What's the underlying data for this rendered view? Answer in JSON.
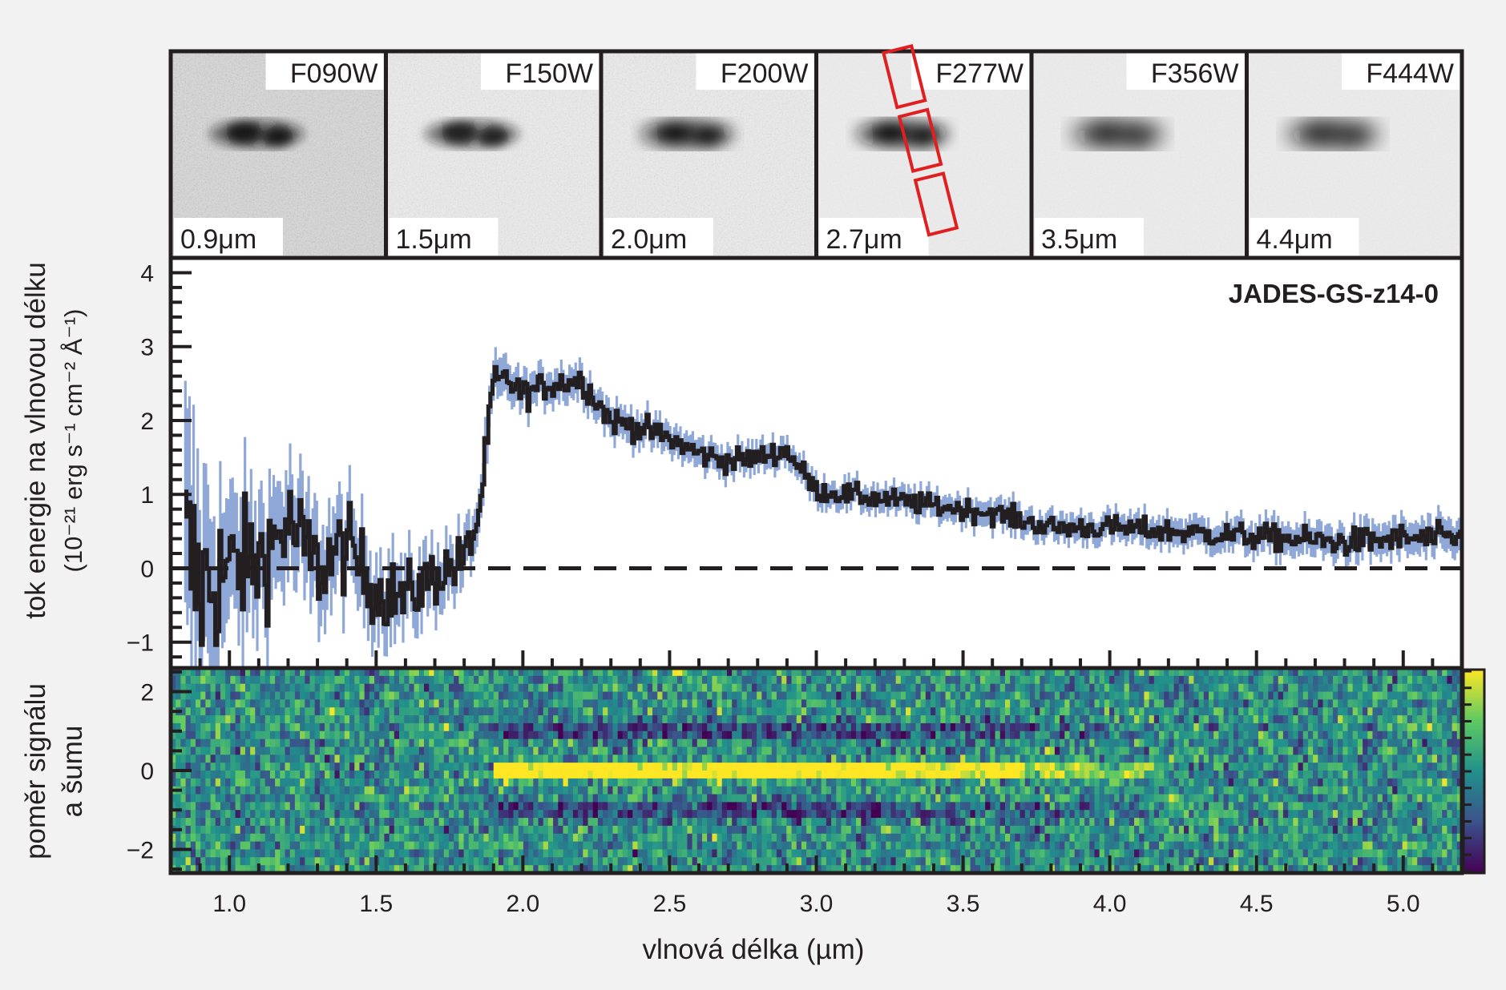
{
  "figure": {
    "object_name": "JADES-GS-z14-0",
    "xlabel": "vlnová délka (µm)",
    "flux_ylabel_line1": "tok energie na vlnovou délku",
    "flux_ylabel_line2": "(10⁻²¹ erg s⁻¹ cm⁻² Å⁻¹)",
    "snr_ylabel_line1": "poměr signálu",
    "snr_ylabel_line2": "a šumu"
  },
  "filters": [
    {
      "name": "F090W",
      "wavelength": "0.9μm"
    },
    {
      "name": "F150W",
      "wavelength": "1.5μm"
    },
    {
      "name": "F200W",
      "wavelength": "2.0μm"
    },
    {
      "name": "F277W",
      "wavelength": "2.7μm"
    },
    {
      "name": "F356W",
      "wavelength": "3.5μm"
    },
    {
      "name": "F444W",
      "wavelength": "4.4μm"
    }
  ],
  "colors": {
    "spectrum": "#231f20",
    "error_band": "#8fa8d8",
    "slit": "#e02020",
    "frame": "#231f20",
    "background": "#f2f2f2"
  },
  "chart_data": [
    {
      "type": "line",
      "title": "JADES-GS-z14-0",
      "xlabel": "vlnová délka (µm)",
      "ylabel": "tok energie na vlnovou délku (10⁻²¹ erg s⁻¹ cm⁻² Å⁻¹)",
      "xlim": [
        0.8,
        5.2
      ],
      "ylim": [
        -1.35,
        4.2
      ],
      "xticks": [
        1.0,
        1.5,
        2.0,
        2.5,
        3.0,
        3.5,
        4.0,
        4.5,
        5.0
      ],
      "xtick_labels": [
        "1.0",
        "1.5",
        "2.0",
        "2.5",
        "3.0",
        "3.5",
        "4.0",
        "4.5",
        "5.0"
      ],
      "yticks": [
        -1,
        0,
        1,
        2,
        3,
        4
      ],
      "ytick_labels": [
        "−1",
        "0",
        "1",
        "2",
        "3",
        "4"
      ],
      "reference_line": {
        "y": 0,
        "style": "dashed"
      },
      "series": [
        {
          "kind": "flux",
          "x": [
            0.85,
            0.9,
            1.0,
            1.1,
            1.2,
            1.3,
            1.4,
            1.5,
            1.6,
            1.7,
            1.8,
            1.85,
            1.9,
            1.95,
            2.0,
            2.1,
            2.2,
            2.3,
            2.4,
            2.5,
            2.6,
            2.7,
            2.8,
            2.9,
            3.0,
            3.2,
            3.4,
            3.6,
            3.8,
            4.0,
            4.2,
            4.4,
            4.6,
            4.8,
            5.0,
            5.2
          ],
          "y": [
            0.2,
            -0.3,
            0.0,
            0.1,
            0.6,
            0.0,
            0.3,
            -0.3,
            -0.4,
            -0.1,
            0.1,
            0.7,
            2.5,
            2.55,
            2.35,
            2.5,
            2.55,
            2.0,
            1.9,
            1.75,
            1.55,
            1.45,
            1.5,
            1.6,
            1.05,
            0.95,
            0.85,
            0.75,
            0.55,
            0.55,
            0.5,
            0.45,
            0.4,
            0.35,
            0.4,
            0.4
          ]
        },
        {
          "kind": "uncertainty_1sigma",
          "x": [
            0.85,
            1.0,
            1.5,
            1.85,
            2.0,
            3.0,
            4.0,
            5.2
          ],
          "y": [
            1.5,
            0.8,
            0.45,
            0.3,
            0.22,
            0.16,
            0.17,
            0.22
          ]
        }
      ]
    },
    {
      "type": "heatmap",
      "xlabel": "vlnová délka (µm)",
      "ylabel": "poměr signálu a šumu",
      "xlim": [
        0.8,
        5.2
      ],
      "ylim": [
        -2.6,
        2.6
      ],
      "yticks": [
        -2,
        0,
        2
      ],
      "ytick_labels": [
        "−2",
        "0",
        "2"
      ],
      "trace": {
        "y": 0,
        "x_start": 1.9,
        "x_end": 4.15,
        "peak_snr": 6
      },
      "negative_traces": [
        {
          "y": 1.0
        },
        {
          "y": -1.0
        }
      ],
      "colormap": "viridis",
      "colorbar_range": [
        -3,
        3
      ]
    }
  ]
}
